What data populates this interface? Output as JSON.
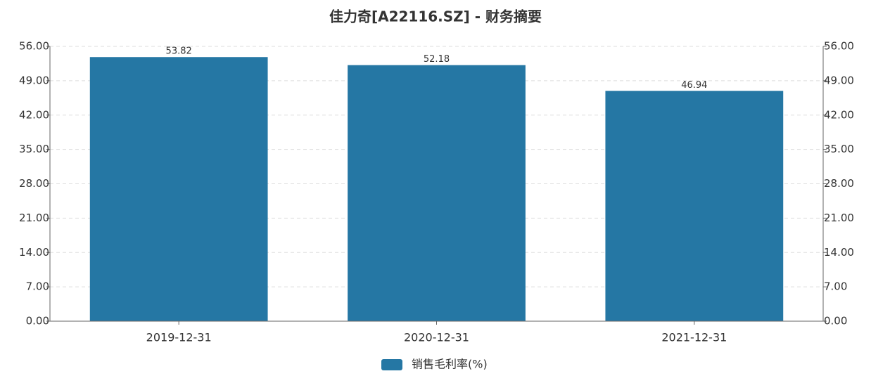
{
  "chart_data": {
    "type": "bar",
    "title": "佳力奇[A22116.SZ] - 财务摘要",
    "categories": [
      "2019-12-31",
      "2020-12-31",
      "2021-12-31"
    ],
    "series": [
      {
        "name": "销售毛利率(%)",
        "color": "#2577a4",
        "values": [
          53.82,
          52.18,
          46.94
        ]
      }
    ],
    "ylim": [
      0,
      56
    ],
    "yticks": [
      {
        "value": 0,
        "label": "0.00"
      },
      {
        "value": 7,
        "label": "7.00"
      },
      {
        "value": 14,
        "label": "14.00"
      },
      {
        "value": 21,
        "label": "21.00"
      },
      {
        "value": 28,
        "label": "28.00"
      },
      {
        "value": 35,
        "label": "35.00"
      },
      {
        "value": 42,
        "label": "42.00"
      },
      {
        "value": 49,
        "label": "49.00"
      },
      {
        "value": 56,
        "label": "56.00"
      }
    ],
    "y2lim": [
      0,
      56
    ],
    "y2ticks": [
      {
        "value": 0,
        "label": "0.00"
      },
      {
        "value": 7,
        "label": "7.00"
      },
      {
        "value": 14,
        "label": "14.00"
      },
      {
        "value": 21,
        "label": "21.00"
      },
      {
        "value": 28,
        "label": "28.00"
      },
      {
        "value": 35,
        "label": "35.00"
      },
      {
        "value": 42,
        "label": "42.00"
      },
      {
        "value": 49,
        "label": "49.00"
      },
      {
        "value": 56,
        "label": "56.00"
      }
    ],
    "grid": true
  }
}
